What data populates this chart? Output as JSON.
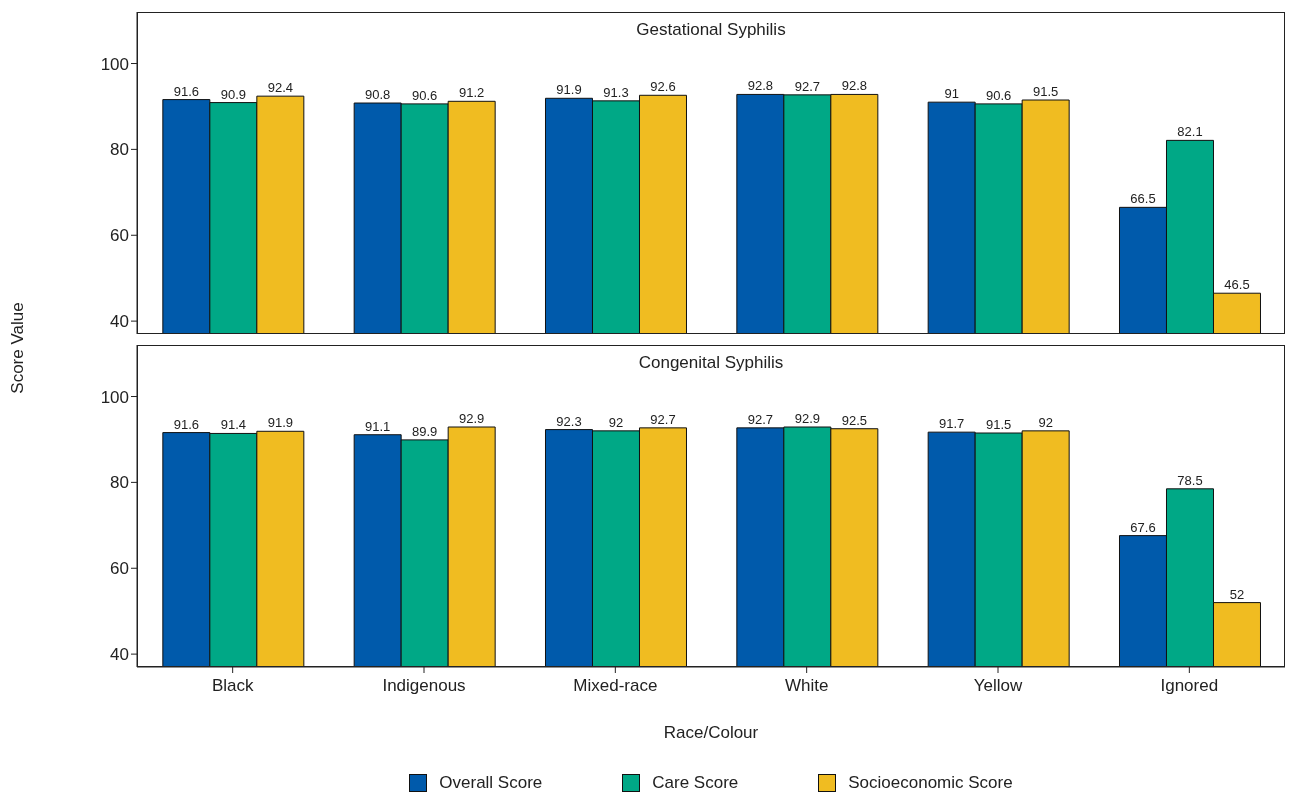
{
  "chart_data": [
    {
      "type": "bar",
      "title": "Gestational Syphilis",
      "ylabel": "Score Value",
      "categories": [
        null,
        null,
        null,
        null,
        null,
        null
      ],
      "series": [
        {
          "color": "#005aab",
          "values": [
            91.6,
            90.8,
            91.9,
            92.8,
            91,
            66.5
          ]
        },
        {
          "color": "#00a886",
          "values": [
            90.9,
            90.6,
            91.3,
            92.7,
            90.6,
            82.1
          ]
        },
        {
          "color": "#f0bc21",
          "values": [
            92.4,
            91.2,
            92.6,
            92.8,
            91.5,
            46.5
          ]
        }
      ],
      "ylim": [
        37,
        112
      ],
      "yticks": [
        40,
        60,
        80,
        100
      ],
      "grid": false,
      "data_labels": true,
      "tick_labels": "y"
    },
    {
      "type": "bar",
      "title": "Congenital Syphilis",
      "xlabel": "Race/Colour",
      "categories": [
        "Black",
        "Indigenous",
        "Mixed-race",
        "White",
        "Yellow",
        "Ignored"
      ],
      "series": [
        {
          "name": "Overall Score",
          "color": "#005aab",
          "values": [
            91.6,
            91.1,
            92.3,
            92.7,
            91.7,
            67.6
          ]
        },
        {
          "name": "Care Score",
          "color": "#00a886",
          "values": [
            91.4,
            89.9,
            92,
            92.9,
            91.5,
            78.5
          ]
        },
        {
          "name": "Socioeconomic Score",
          "color": "#f0bc21",
          "values": [
            91.9,
            92.9,
            92.7,
            92.5,
            92,
            52
          ]
        }
      ],
      "ylim": [
        37,
        112
      ],
      "yticks": [
        40,
        60,
        80,
        100
      ],
      "grid": false,
      "data_labels": true,
      "legend": "bottom"
    }
  ]
}
